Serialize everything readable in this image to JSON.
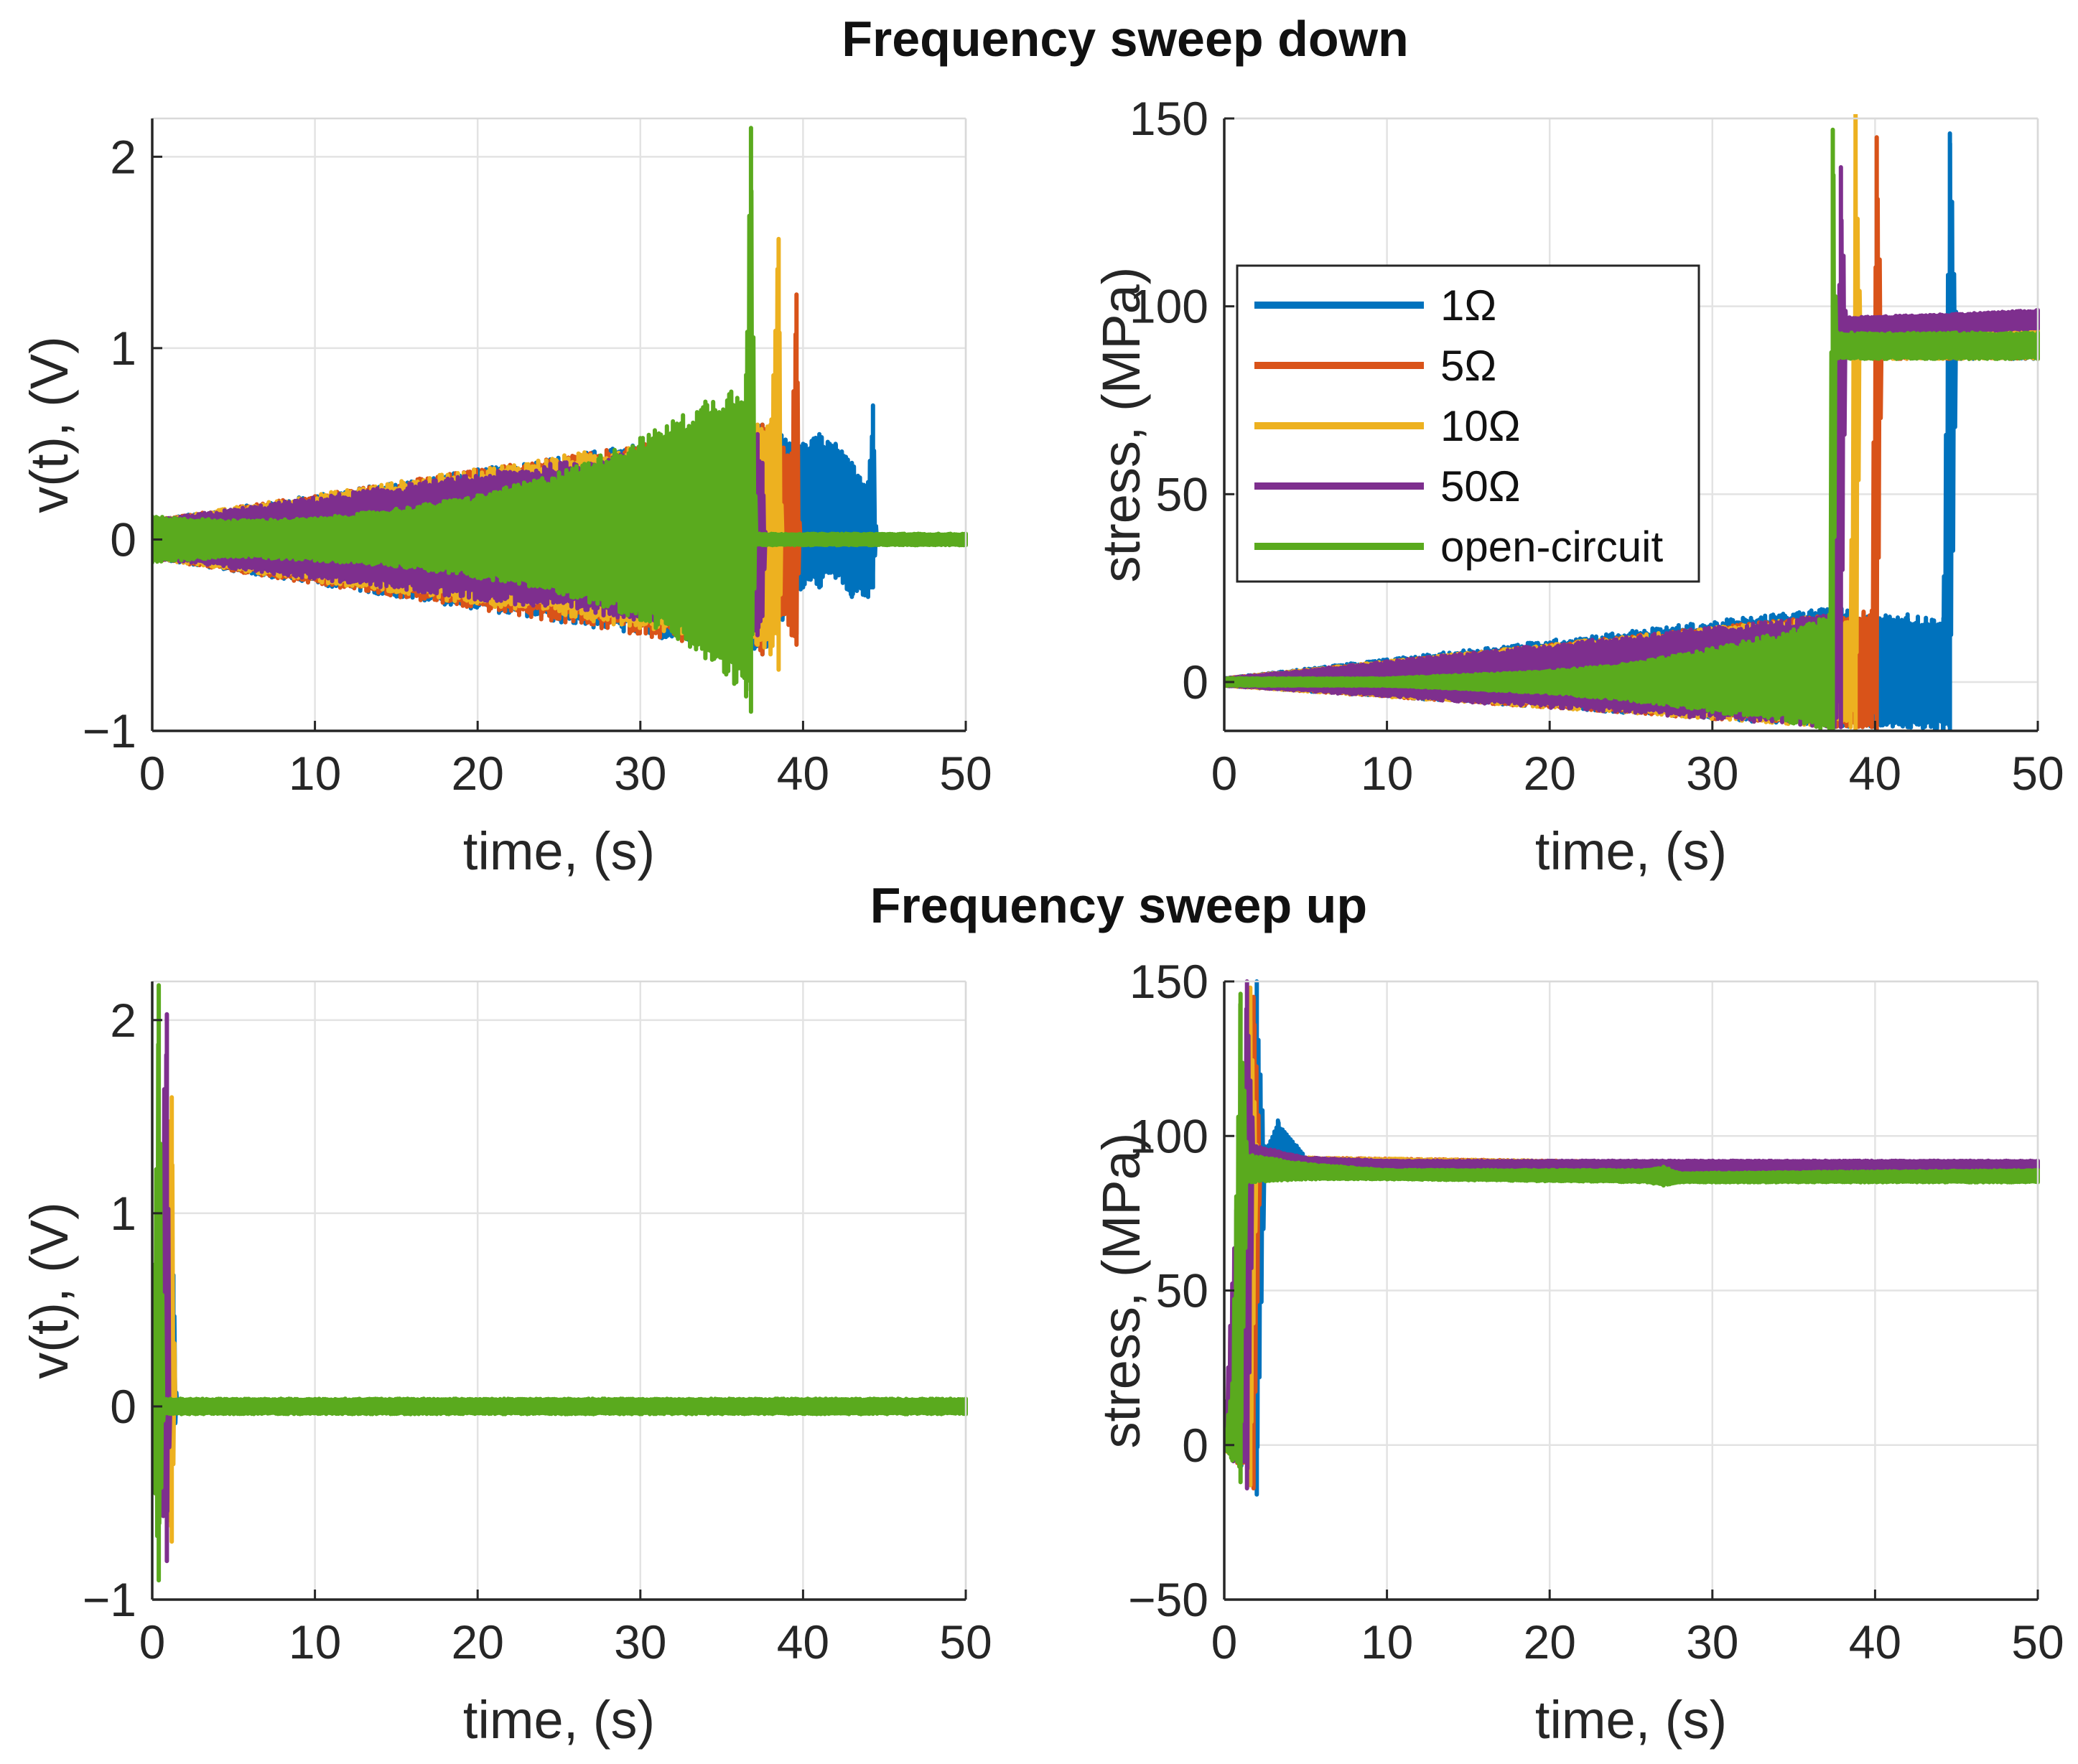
{
  "figure": {
    "section_titles": [
      "Frequency sweep down",
      "Frequency sweep up"
    ]
  },
  "colors": {
    "1Ω": "#0072BD",
    "5Ω": "#D95319",
    "10Ω": "#EDB120",
    "50Ω": "#7E2F8E",
    "open-circuit": "#5AAA1E"
  },
  "chart_data": [
    {
      "id": "down-voltage",
      "type": "line",
      "title": "Frequency sweep down",
      "xlabel": "time, (s)",
      "ylabel": "v(t), (V)",
      "xlim": [
        0,
        50
      ],
      "ylim": [
        -1,
        2.2
      ],
      "xticks": [
        0,
        10,
        20,
        30,
        40,
        50
      ],
      "yticks": [
        -1,
        0,
        1,
        2
      ],
      "ytick_labels": [
        "−1",
        "0",
        "1",
        "2"
      ],
      "grid": true,
      "legend": false,
      "series": [
        {
          "name": "1Ω",
          "color": "#0072BD",
          "envelope": [
            [
              0,
              -0.1,
              0.1
            ],
            [
              37.5,
              -0.6,
              0.6
            ],
            [
              40,
              -0.25,
              0.5
            ],
            [
              41,
              -0.25,
              0.55
            ],
            [
              42,
              -0.2,
              0.5
            ],
            [
              43,
              -0.3,
              0.4
            ],
            [
              44,
              -0.3,
              0.3
            ],
            [
              44.3,
              -0.25,
              0.7
            ],
            [
              44.5,
              -0.02,
              0.02
            ],
            [
              50,
              -0.02,
              0.02
            ]
          ]
        },
        {
          "name": "5Ω",
          "color": "#D95319",
          "envelope": [
            [
              0,
              -0.1,
              0.1
            ],
            [
              37.5,
              -0.6,
              0.6
            ],
            [
              38.5,
              -0.4,
              0.5
            ],
            [
              39.3,
              -0.5,
              0.45
            ],
            [
              39.6,
              -0.55,
              1.28
            ],
            [
              39.8,
              -0.02,
              0.02
            ],
            [
              50,
              -0.02,
              0.02
            ]
          ]
        },
        {
          "name": "10Ω",
          "color": "#EDB120",
          "envelope": [
            [
              0,
              -0.1,
              0.1
            ],
            [
              37.2,
              -0.55,
              0.6
            ],
            [
              38,
              -0.6,
              0.6
            ],
            [
              38.5,
              -0.68,
              1.57
            ],
            [
              38.7,
              -0.02,
              0.02
            ],
            [
              50,
              -0.02,
              0.02
            ]
          ]
        },
        {
          "name": "50Ω",
          "color": "#7E2F8E",
          "envelope": [
            [
              0,
              -0.1,
              0.1
            ],
            [
              37.2,
              -0.5,
              0.55
            ],
            [
              37.5,
              -0.4,
              0.4
            ],
            [
              37.7,
              -0.02,
              0.02
            ],
            [
              50,
              -0.02,
              0.02
            ]
          ]
        },
        {
          "name": "open-circuit",
          "color": "#5AAA1E",
          "envelope": [
            [
              0,
              -0.12,
              0.12
            ],
            [
              5,
              -0.09,
              0.1
            ],
            [
              10,
              -0.11,
              0.11
            ],
            [
              15,
              -0.14,
              0.16
            ],
            [
              20,
              -0.2,
              0.23
            ],
            [
              25,
              -0.28,
              0.35
            ],
            [
              30,
              -0.42,
              0.53
            ],
            [
              34,
              -0.62,
              0.72
            ],
            [
              36.5,
              -0.82,
              0.86
            ],
            [
              36.8,
              -0.9,
              2.15
            ],
            [
              37.1,
              -0.03,
              0.03
            ],
            [
              50,
              -0.03,
              0.03
            ]
          ]
        }
      ]
    },
    {
      "id": "down-stress",
      "type": "line",
      "title": "Frequency sweep down",
      "xlabel": "time, (s)",
      "ylabel": "stress, (MPa)",
      "xlim": [
        0,
        50
      ],
      "ylim": [
        -13,
        150
      ],
      "xticks": [
        0,
        10,
        20,
        30,
        40,
        50
      ],
      "yticks": [
        0,
        50,
        100,
        150
      ],
      "ytick_labels": [
        "0",
        "50",
        "100",
        "150"
      ],
      "grid": true,
      "legend": true,
      "legend_position": "center-left",
      "legend_entries": [
        "1Ω",
        "5Ω",
        "10Ω",
        "50Ω",
        "open-circuit"
      ],
      "series": [
        {
          "name": "1Ω",
          "color": "#0072BD",
          "envelope": [
            [
              0,
              -1,
              1
            ],
            [
              37.5,
              -12,
              20
            ],
            [
              40,
              -12,
              18
            ],
            [
              42,
              -12,
              18
            ],
            [
              44.2,
              -13,
              17
            ],
            [
              44.6,
              -13,
              146
            ],
            [
              45,
              86,
              96
            ],
            [
              50,
              86,
              96
            ]
          ]
        },
        {
          "name": "5Ω",
          "color": "#D95319",
          "envelope": [
            [
              0,
              -1,
              1
            ],
            [
              37.5,
              -12,
              18
            ],
            [
              39.8,
              -12,
              19
            ],
            [
              40.1,
              -13,
              145
            ],
            [
              40.4,
              86,
              96
            ],
            [
              50,
              86,
              96
            ]
          ]
        },
        {
          "name": "10Ω",
          "color": "#EDB120",
          "envelope": [
            [
              0,
              -1,
              1
            ],
            [
              37.5,
              -12,
              18
            ],
            [
              38.5,
              -12,
              16
            ],
            [
              38.8,
              -13,
              152
            ],
            [
              39.1,
              86,
              96
            ],
            [
              50,
              86,
              96
            ]
          ]
        },
        {
          "name": "50Ω",
          "color": "#7E2F8E",
          "envelope": [
            [
              0,
              -1,
              1
            ],
            [
              37.5,
              -12,
              18
            ],
            [
              37.9,
              -12,
              137
            ],
            [
              38.2,
              93,
              97
            ],
            [
              45,
              93,
              98
            ],
            [
              50,
              94,
              99
            ]
          ]
        },
        {
          "name": "open-circuit",
          "color": "#5AAA1E",
          "envelope": [
            [
              0,
              -1,
              1
            ],
            [
              10,
              -1,
              1
            ],
            [
              20,
              -3,
              3
            ],
            [
              25,
              -5,
              5
            ],
            [
              30,
              -8,
              9
            ],
            [
              35,
              -11,
              14
            ],
            [
              37.2,
              -13,
              18
            ],
            [
              37.4,
              -13,
              147
            ],
            [
              37.6,
              86,
              93
            ],
            [
              50,
              86,
              93
            ]
          ]
        }
      ]
    },
    {
      "id": "up-voltage",
      "type": "line",
      "title": "Frequency sweep up",
      "xlabel": "time, (s)",
      "ylabel": "v(t), (V)",
      "xlim": [
        0,
        50
      ],
      "ylim": [
        -1,
        2.2
      ],
      "xticks": [
        0,
        10,
        20,
        30,
        40,
        50
      ],
      "yticks": [
        -1,
        0,
        1,
        2
      ],
      "ytick_labels": [
        "−1",
        "0",
        "1",
        "2"
      ],
      "grid": true,
      "legend": false,
      "series": [
        {
          "name": "1Ω",
          "color": "#0072BD",
          "envelope": [
            [
              0,
              -0.05,
              0.05
            ],
            [
              1.3,
              -0.25,
              0.68
            ],
            [
              1.5,
              -0.02,
              0.02
            ],
            [
              50,
              -0.02,
              0.02
            ]
          ]
        },
        {
          "name": "5Ω",
          "color": "#D95319",
          "envelope": [
            [
              0,
              -0.05,
              0.05
            ],
            [
              1.1,
              -0.55,
              1.3
            ],
            [
              1.3,
              -0.02,
              0.02
            ],
            [
              50,
              -0.02,
              0.02
            ]
          ]
        },
        {
          "name": "10Ω",
          "color": "#EDB120",
          "envelope": [
            [
              0,
              -0.05,
              0.05
            ],
            [
              1.2,
              -0.7,
              1.6
            ],
            [
              1.4,
              -0.02,
              0.02
            ],
            [
              50,
              -0.02,
              0.02
            ]
          ]
        },
        {
          "name": "50Ω",
          "color": "#7E2F8E",
          "envelope": [
            [
              0,
              -0.05,
              0.05
            ],
            [
              0.9,
              -0.8,
              2.03
            ],
            [
              1.1,
              -0.02,
              0.02
            ],
            [
              50,
              -0.02,
              0.02
            ]
          ]
        },
        {
          "name": "open-circuit",
          "color": "#5AAA1E",
          "envelope": [
            [
              0,
              -0.15,
              0.15
            ],
            [
              0.4,
              -0.9,
              2.18
            ],
            [
              0.7,
              -0.04,
              0.04
            ],
            [
              50,
              -0.04,
              0.04
            ]
          ]
        }
      ]
    },
    {
      "id": "up-stress",
      "type": "line",
      "title": "Frequency sweep up",
      "xlabel": "time, (s)",
      "ylabel": "stress, (MPa)",
      "xlim": [
        0,
        50
      ],
      "ylim": [
        -50,
        150
      ],
      "xticks": [
        0,
        10,
        20,
        30,
        40,
        50
      ],
      "yticks": [
        -50,
        0,
        50,
        100,
        150
      ],
      "ytick_labels": [
        "−50",
        "0",
        "50",
        "100",
        "150"
      ],
      "grid": true,
      "legend": false,
      "series": [
        {
          "name": "1Ω",
          "color": "#0072BD",
          "envelope": [
            [
              0,
              -1,
              1
            ],
            [
              2,
              -16,
              150
            ],
            [
              2.5,
              87,
              95
            ],
            [
              3.3,
              86,
              105
            ],
            [
              5,
              88,
              93
            ],
            [
              10,
              87,
              91
            ],
            [
              50,
              86,
              90
            ]
          ]
        },
        {
          "name": "5Ω",
          "color": "#D95319",
          "envelope": [
            [
              0,
              -1,
              1
            ],
            [
              1.8,
              -14,
              145
            ],
            [
              2.2,
              87,
              95
            ],
            [
              5,
              88,
              93
            ],
            [
              50,
              86,
              90
            ]
          ]
        },
        {
          "name": "10Ω",
          "color": "#EDB120",
          "envelope": [
            [
              0,
              -1,
              1
            ],
            [
              1.6,
              -13,
              148
            ],
            [
              2,
              87,
              95
            ],
            [
              5,
              88,
              93
            ],
            [
              50,
              86,
              90
            ]
          ]
        },
        {
          "name": "50Ω",
          "color": "#7E2F8E",
          "envelope": [
            [
              0,
              -1,
              1
            ],
            [
              1.4,
              -14,
              150
            ],
            [
              1.8,
              88,
              97
            ],
            [
              5,
              89,
              93
            ],
            [
              10,
              89,
              92
            ],
            [
              50,
              89,
              92
            ]
          ]
        },
        {
          "name": "open-circuit",
          "color": "#5AAA1E",
          "envelope": [
            [
              0,
              -1,
              1
            ],
            [
              0.5,
              -5,
              20
            ],
            [
              1,
              -12,
              146
            ],
            [
              1.4,
              85,
              94
            ],
            [
              5,
              86,
              91
            ],
            [
              10,
              86,
              89
            ],
            [
              26,
              85,
              89
            ],
            [
              27,
              84,
              90
            ],
            [
              28,
              85,
              88
            ],
            [
              50,
              85,
              89
            ]
          ]
        }
      ]
    }
  ]
}
